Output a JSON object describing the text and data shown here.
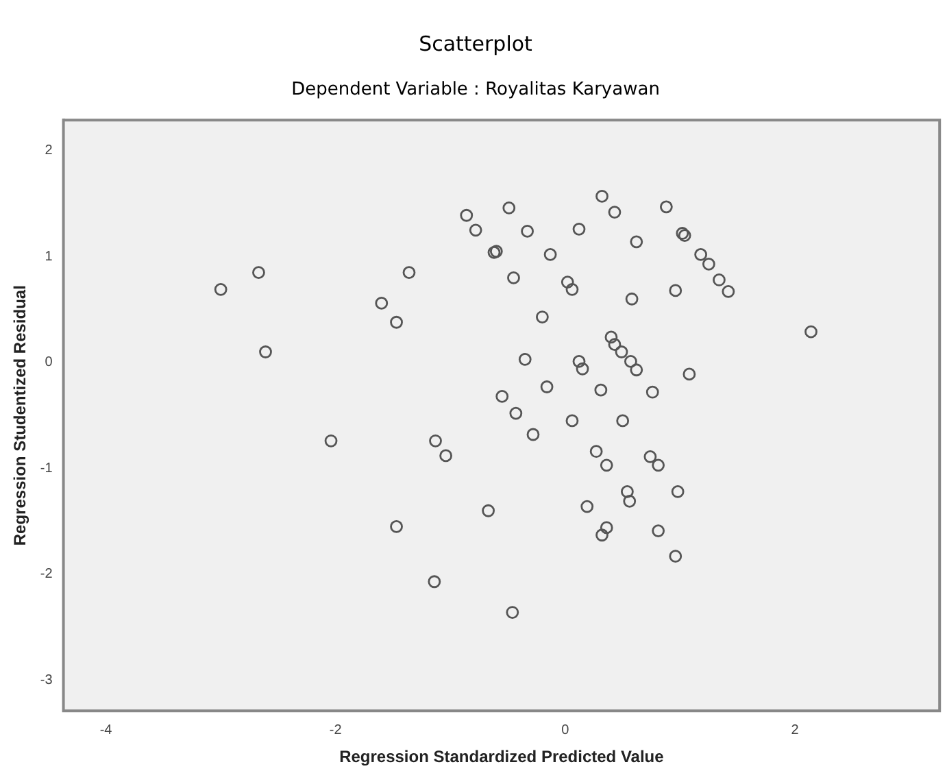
{
  "chart_data": {
    "type": "scatter",
    "title": "Scatterplot",
    "subtitle": "Dependent Variable : Royalitas Karyawan",
    "xlabel": "Regression Standardized Predicted Value",
    "ylabel": "Regression Studentized Residual",
    "xlim": [
      -4.37,
      3.26
    ],
    "ylim": [
      -3.29,
      2.29
    ],
    "xticks": [
      -4,
      -2,
      0,
      2
    ],
    "yticks": [
      -3,
      -2,
      -1,
      0,
      1,
      2
    ],
    "grid": false,
    "legend": false,
    "marker": "circle",
    "series": [
      {
        "color": "#555555",
        "x": [
          -3.0,
          -2.67,
          -2.61,
          -1.6,
          -1.47,
          -1.36,
          -0.86,
          -0.78,
          -0.49,
          -0.33,
          -0.62,
          -0.6,
          -0.45,
          -0.13,
          0.12,
          0.32,
          0.43,
          0.88,
          0.62,
          1.02,
          1.04,
          1.18,
          1.25,
          1.34,
          1.42,
          0.96,
          0.58,
          0.02,
          0.06,
          -0.2,
          2.14,
          0.4,
          0.43,
          0.49,
          0.57,
          0.62,
          0.12,
          0.15,
          -0.35,
          1.08,
          -0.16,
          0.31,
          0.76,
          -0.55,
          -0.43,
          0.06,
          0.5,
          -0.28,
          -1.13,
          -1.04,
          0.27,
          0.36,
          0.74,
          0.81,
          0.54,
          0.56,
          0.98,
          -0.67,
          0.19,
          0.36,
          0.32,
          0.81,
          0.96,
          -1.14,
          -0.46,
          -2.04,
          -1.47
        ],
        "values": [
          0.69,
          0.85,
          0.1,
          0.56,
          0.38,
          0.85,
          1.39,
          1.25,
          1.46,
          1.24,
          1.04,
          1.05,
          0.8,
          1.02,
          1.26,
          1.57,
          1.42,
          1.47,
          1.14,
          1.22,
          1.2,
          1.02,
          0.93,
          0.78,
          0.67,
          0.68,
          0.6,
          0.76,
          0.69,
          0.43,
          0.29,
          0.24,
          0.17,
          0.1,
          0.01,
          -0.07,
          0.01,
          -0.06,
          0.03,
          -0.11,
          -0.23,
          -0.26,
          -0.28,
          -0.32,
          -0.48,
          -0.55,
          -0.55,
          -0.68,
          -0.74,
          -0.88,
          -0.84,
          -0.97,
          -0.89,
          -0.97,
          -1.22,
          -1.31,
          -1.22,
          -1.4,
          -1.36,
          -1.56,
          -1.63,
          -1.59,
          -1.83,
          -2.07,
          -2.36,
          -0.74,
          -1.55
        ]
      }
    ]
  }
}
